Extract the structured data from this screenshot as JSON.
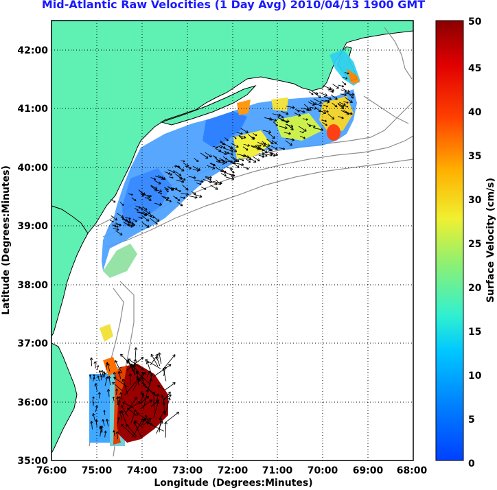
{
  "title": "Mid-Atlantic Raw Velocities (1 Day Avg) 2010/04/13 1900 GMT",
  "map": {
    "xlabel": "Longitude (Degrees:Minutes)",
    "ylabel": "Latitude (Degrees:Minutes)",
    "x_ticks": [
      "76:00",
      "75:00",
      "74:00",
      "73:00",
      "72:00",
      "71:00",
      "70:00",
      "69:00",
      "68:00"
    ],
    "y_ticks": [
      "35:00",
      "36:00",
      "37:00",
      "38:00",
      "39:00",
      "40:00",
      "41:00",
      "42:00"
    ],
    "lon_range": [
      -76,
      -68
    ],
    "lat_range": [
      35,
      42.5
    ],
    "grid": "dotted",
    "land_color": "#5ff0b4",
    "coast_color": "#000000",
    "bathymetry_color": "#8c8c8c"
  },
  "colorbar": {
    "label": "Surface Velocity (cm/s)",
    "ticks": [
      "0",
      "5",
      "10",
      "15",
      "20",
      "25",
      "30",
      "35",
      "40",
      "45",
      "50"
    ],
    "range": [
      0,
      50
    ],
    "colormap": "jet"
  }
}
